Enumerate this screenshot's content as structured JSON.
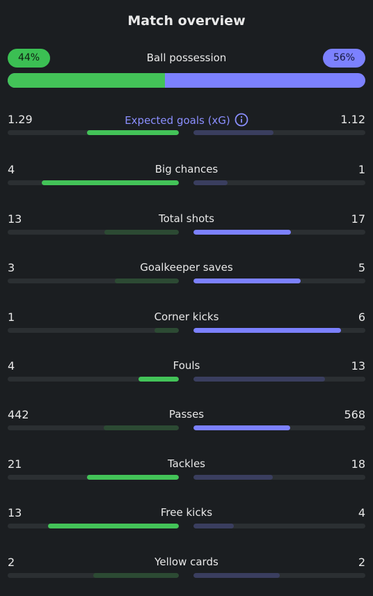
{
  "title": "Match overview",
  "possession": {
    "label": "Ball possession",
    "home": "44%",
    "away": "56%",
    "home_fraction": 0.44
  },
  "colors": {
    "home_strong": "#43c358",
    "home_weak": "#2c4a33",
    "away_strong": "#7c81ff",
    "away_weak": "#3a3e5f",
    "accent_label": "#8b8fff"
  },
  "stats": [
    {
      "label": "Expected goals (xG)",
      "home": "1.29",
      "away": "1.12",
      "info": true,
      "home_fraction": 0.535,
      "away_fraction": 0.465,
      "home_strong": true,
      "away_strong": false
    },
    {
      "label": "Big chances",
      "home": "4",
      "away": "1",
      "home_fraction": 0.8,
      "away_fraction": 0.2,
      "home_strong": true,
      "away_strong": false
    },
    {
      "label": "Total shots",
      "home": "13",
      "away": "17",
      "home_fraction": 0.433,
      "away_fraction": 0.567,
      "home_strong": false,
      "away_strong": true
    },
    {
      "label": "Goalkeeper saves",
      "home": "3",
      "away": "5",
      "home_fraction": 0.375,
      "away_fraction": 0.625,
      "home_strong": false,
      "away_strong": true
    },
    {
      "label": "Corner kicks",
      "home": "1",
      "away": "6",
      "home_fraction": 0.143,
      "away_fraction": 0.857,
      "home_strong": false,
      "away_strong": true
    },
    {
      "label": "Fouls",
      "home": "4",
      "away": "13",
      "home_fraction": 0.235,
      "away_fraction": 0.765,
      "home_strong": true,
      "away_strong": false
    },
    {
      "label": "Passes",
      "home": "442",
      "away": "568",
      "home_fraction": 0.438,
      "away_fraction": 0.562,
      "home_strong": false,
      "away_strong": true
    },
    {
      "label": "Tackles",
      "home": "21",
      "away": "18",
      "home_fraction": 0.538,
      "away_fraction": 0.462,
      "home_strong": true,
      "away_strong": false
    },
    {
      "label": "Free kicks",
      "home": "13",
      "away": "4",
      "home_fraction": 0.765,
      "away_fraction": 0.235,
      "home_strong": true,
      "away_strong": false
    },
    {
      "label": "Yellow cards",
      "home": "2",
      "away": "2",
      "home_fraction": 0.5,
      "away_fraction": 0.5,
      "home_strong": false,
      "away_strong": false
    }
  ],
  "icons": {
    "info": "info-icon"
  }
}
